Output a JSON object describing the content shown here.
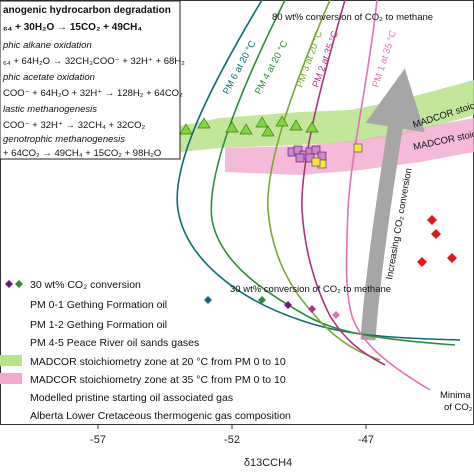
{
  "chart_data": {
    "type": "line",
    "xlabel": "δ13CCH4",
    "x_ticks": [
      -57,
      -52,
      -47
    ],
    "reactions": {
      "title": "anogenic hydrocarbon degradation",
      "overall_eq": "₆₄ + 30H₂O → 15CO₂ + 49CH₄",
      "steps": [
        {
          "name": "phic alkane oxidation",
          "eq": "₆₄ + 64H₂O → 32CH₃COO⁻ + 32H⁺ + 68H₂"
        },
        {
          "name": "phic acetate oxidation",
          "eq": "COO⁻ + 64H₂O + 32H⁺ → 128H₂ + 64CO₂"
        },
        {
          "name": "lastic methanogenesis",
          "eq": "COO⁻ + 32H⁺ → 32CH₄ + 32CO₂"
        },
        {
          "name": "genotrophic methanogenesis",
          "eq": "+ 64CO₂ → 49CH₄ + 15CO₂ + 98H₂O"
        }
      ]
    },
    "legend": [
      {
        "label": "30 wt% CO₂ conversion",
        "color": "#6a1b7a"
      },
      {
        "label": "PM 0-1 Gething Formation oil"
      },
      {
        "label": "PM 1-2 Gething Formation oil"
      },
      {
        "label": "PM 4-5 Peace River oil sands gases"
      },
      {
        "label": "MADCOR stoichiometry zone at 20 °C from PM 0 to 10",
        "color": "#b7e38a"
      },
      {
        "label": "MADCOR stoichiometry zone at 35 °C from PM 0 to 10",
        "color": "#f3a9cf"
      },
      {
        "label": "Modelled pristine starting oil associated gas"
      },
      {
        "label": "Alberta Lower Cretaceous thermogenic gas composition"
      }
    ],
    "annotations": {
      "top": "80 wt% conversion of CO₂ to methane",
      "bottom": "30 wt% conversion of CO₂ to methane",
      "arrow": "Increasing CO₂ conversion",
      "zone20": "MADCOR stoichi",
      "zone35": "MADCOR stoichio",
      "minimal_1": "Minima",
      "minimal_2": "of CO₂"
    },
    "series": [
      {
        "name": "PM 6 at 20 °C",
        "color": "#0c6e73"
      },
      {
        "name": "PM 4 at 20 °C",
        "color": "#2f8c3a"
      },
      {
        "name": "PM 3 at 20 °C",
        "color": "#7aa832"
      },
      {
        "name": "PM 2 at 35 °C",
        "color": "#b0327e"
      },
      {
        "name": "PM 1 at 35 °C",
        "color": "#e073b6"
      }
    ],
    "colors": {
      "green_zone": "#b7e38a",
      "pink_zone": "#f3a9cf",
      "green_marker": "#7dd63b",
      "pink_marker": "#c98ac9",
      "yellow_marker": "#f7e43a",
      "red_marker": "#e3161a",
      "arrow_grey": "#a6a6a6"
    }
  }
}
